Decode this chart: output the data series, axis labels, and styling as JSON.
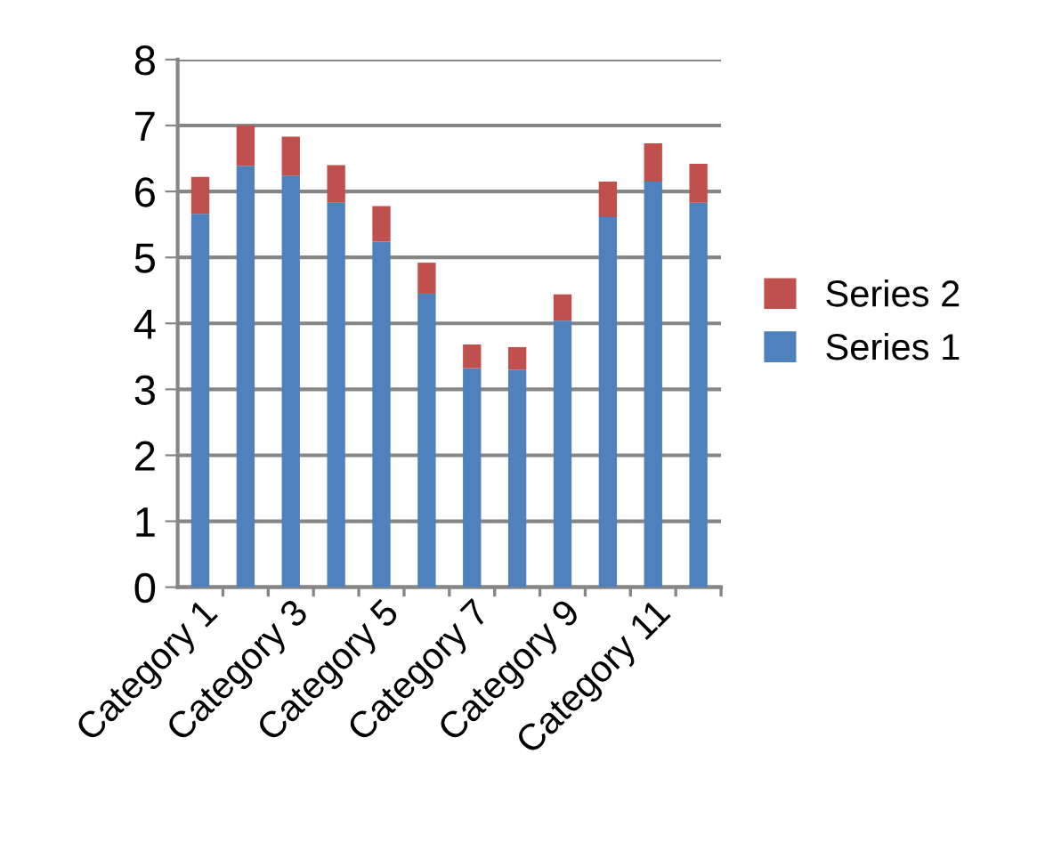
{
  "chart_data": {
    "type": "bar",
    "stacked": true,
    "categories": [
      "Category 1",
      null,
      "Category 3",
      null,
      "Category 5",
      null,
      "Category 7",
      null,
      "Category 9",
      null,
      "Category 11",
      null
    ],
    "series": [
      {
        "name": "Series 1",
        "color": "#4f81bd",
        "values": [
          5.66,
          6.39,
          6.24,
          5.83,
          5.24,
          4.45,
          3.32,
          3.3,
          4.04,
          5.61,
          6.15,
          5.83
        ]
      },
      {
        "name": "Series 2",
        "color": "#c0504d",
        "values": [
          0.56,
          0.61,
          0.59,
          0.57,
          0.54,
          0.47,
          0.36,
          0.34,
          0.4,
          0.54,
          0.58,
          0.59
        ]
      }
    ],
    "ylim": [
      0,
      8
    ],
    "yticks": [
      0,
      1,
      2,
      3,
      4,
      5,
      6,
      7,
      8
    ],
    "grid": "y",
    "legend": "right"
  }
}
